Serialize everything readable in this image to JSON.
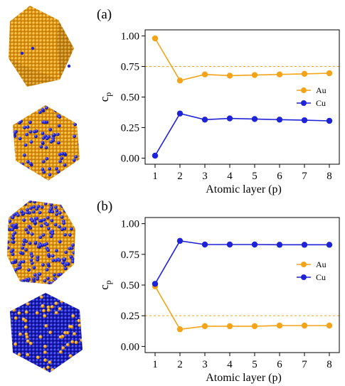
{
  "figure": {
    "colors": {
      "au": "#f4a418",
      "cu": "#1f23d8",
      "ref_line": "#f4a418",
      "axis": "#000000"
    }
  },
  "chart_data": [
    {
      "type": "line",
      "panel_label": "(a)",
      "xlabel": "Atomic layer (p)",
      "ylabel": "c",
      "ylabel_sub": "p",
      "x": [
        1,
        2,
        3,
        4,
        5,
        6,
        7,
        8
      ],
      "xlim": [
        0.6,
        8.4
      ],
      "ylim": [
        -0.05,
        1.05
      ],
      "yticks": [
        "0.00",
        "0.25",
        "0.50",
        "0.75",
        "1.00"
      ],
      "xticks": [
        "1",
        "2",
        "3",
        "4",
        "5",
        "6",
        "7",
        "8"
      ],
      "reference_line": 0.75,
      "legend_position": "right",
      "series": [
        {
          "name": "Au",
          "color": "#f4a418",
          "values": [
            0.98,
            0.635,
            0.685,
            0.675,
            0.68,
            0.685,
            0.69,
            0.695
          ]
        },
        {
          "name": "Cu",
          "color": "#1f23d8",
          "values": [
            0.02,
            0.365,
            0.315,
            0.325,
            0.32,
            0.315,
            0.31,
            0.305
          ]
        }
      ]
    },
    {
      "type": "line",
      "panel_label": "(b)",
      "xlabel": "Atomic layer (p)",
      "ylabel": "c",
      "ylabel_sub": "p",
      "x": [
        1,
        2,
        3,
        4,
        5,
        6,
        7,
        8
      ],
      "xlim": [
        0.6,
        8.4
      ],
      "ylim": [
        -0.05,
        1.05
      ],
      "yticks": [
        "0.00",
        "0.25",
        "0.50",
        "0.75",
        "1.00"
      ],
      "xticks": [
        "1",
        "2",
        "3",
        "4",
        "5",
        "6",
        "7",
        "8"
      ],
      "reference_line": 0.25,
      "legend_position": "right",
      "series": [
        {
          "name": "Au",
          "color": "#f4a418",
          "values": [
            0.49,
            0.14,
            0.165,
            0.165,
            0.165,
            0.17,
            0.17,
            0.17
          ]
        },
        {
          "name": "Cu",
          "color": "#1f23d8",
          "values": [
            0.51,
            0.86,
            0.83,
            0.83,
            0.83,
            0.828,
            0.828,
            0.828
          ]
        }
      ]
    }
  ]
}
